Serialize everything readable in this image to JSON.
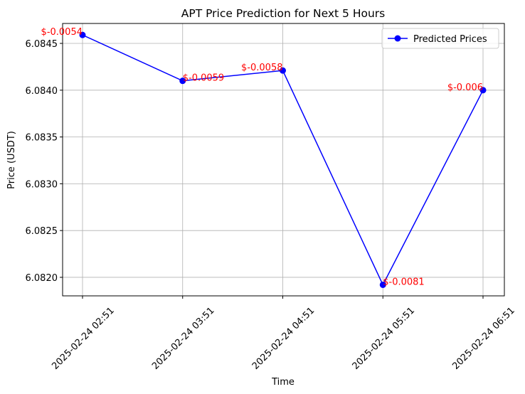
{
  "chart_data": {
    "type": "line",
    "title": "APT Price Prediction for Next 5 Hours",
    "x_label": "Time",
    "y_label": "Price (USDT)",
    "categories": [
      "2025-02-24 02:51",
      "2025-02-24 03:51",
      "2025-02-24 04:51",
      "2025-02-24 05:51",
      "2025-02-24 06:51"
    ],
    "series": [
      {
        "name": "Predicted Prices",
        "color": "#0000ff",
        "values": [
          6.08459,
          6.0841,
          6.08421,
          6.08192,
          6.084
        ]
      }
    ],
    "annotations": [
      "$-0.0054",
      "$-0.0059",
      "$-0.0058",
      "$-0.0081",
      "$-0.006"
    ],
    "annotation_color": "#ff0000",
    "ylim": [
      6.081802,
      6.084713
    ],
    "yticks": [
      {
        "value": 6.082,
        "label": "6.0820"
      },
      6.0825,
      {
        "value": 6.083,
        "label": "6.0830"
      },
      6.0835,
      {
        "value": 6.084,
        "label": "6.0840"
      },
      6.0845
    ],
    "grid": true,
    "legend": "upper right"
  }
}
